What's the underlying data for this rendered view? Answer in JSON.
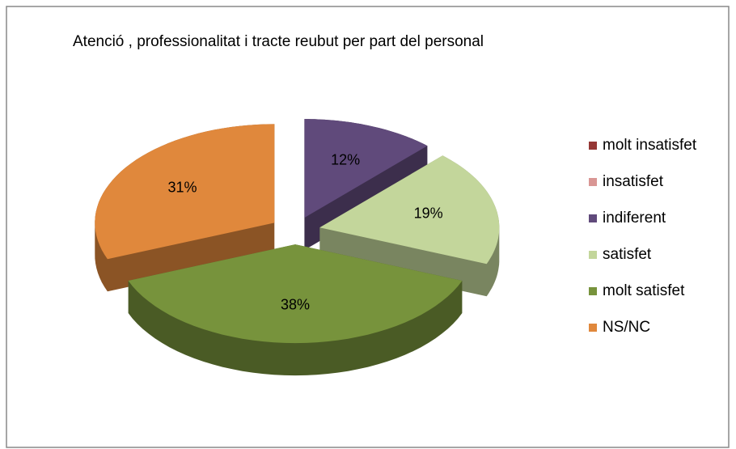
{
  "chart_data": {
    "type": "pie3d",
    "title": "Atenció , professionalitat  i tracte reubut per part del personal",
    "categories": [
      "molt insatisfet",
      "insatisfet",
      "indiferent",
      "satisfet",
      "molt satisfet",
      "NS/NC"
    ],
    "values": [
      0,
      0,
      12,
      19,
      38,
      31
    ],
    "value_labels": [
      null,
      null,
      "12%",
      "19%",
      "38%",
      "31%"
    ],
    "colors": [
      "#953735",
      "#d99694",
      "#604a7b",
      "#c3d69b",
      "#77933c",
      "#e0883c"
    ],
    "legend": "right"
  }
}
